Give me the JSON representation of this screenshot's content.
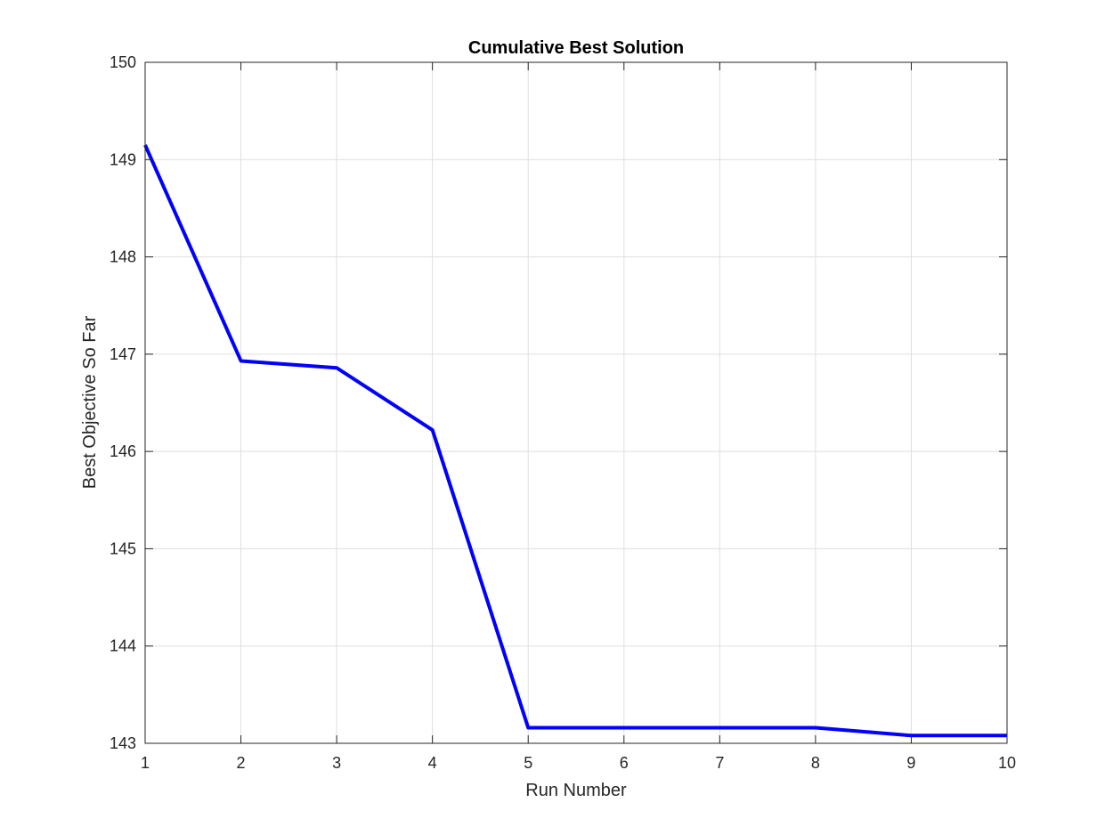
{
  "chart_data": {
    "type": "line",
    "title": "Cumulative Best Solution",
    "xlabel": "Run Number",
    "ylabel": "Best Objective So Far",
    "xlim": [
      1,
      10
    ],
    "ylim": [
      143,
      150
    ],
    "xticks": [
      "1",
      "2",
      "3",
      "4",
      "5",
      "6",
      "7",
      "8",
      "9",
      "10"
    ],
    "yticks": [
      "143",
      "144",
      "145",
      "146",
      "147",
      "148",
      "149",
      "150"
    ],
    "grid": true,
    "box": true,
    "series": [
      {
        "color": "#0000ff",
        "x": [
          1,
          2,
          3,
          4,
          5,
          6,
          7,
          8,
          9,
          10
        ],
        "y": [
          149.15,
          146.93,
          146.86,
          146.22,
          143.16,
          143.16,
          143.16,
          143.16,
          143.08,
          143.08
        ]
      }
    ]
  }
}
